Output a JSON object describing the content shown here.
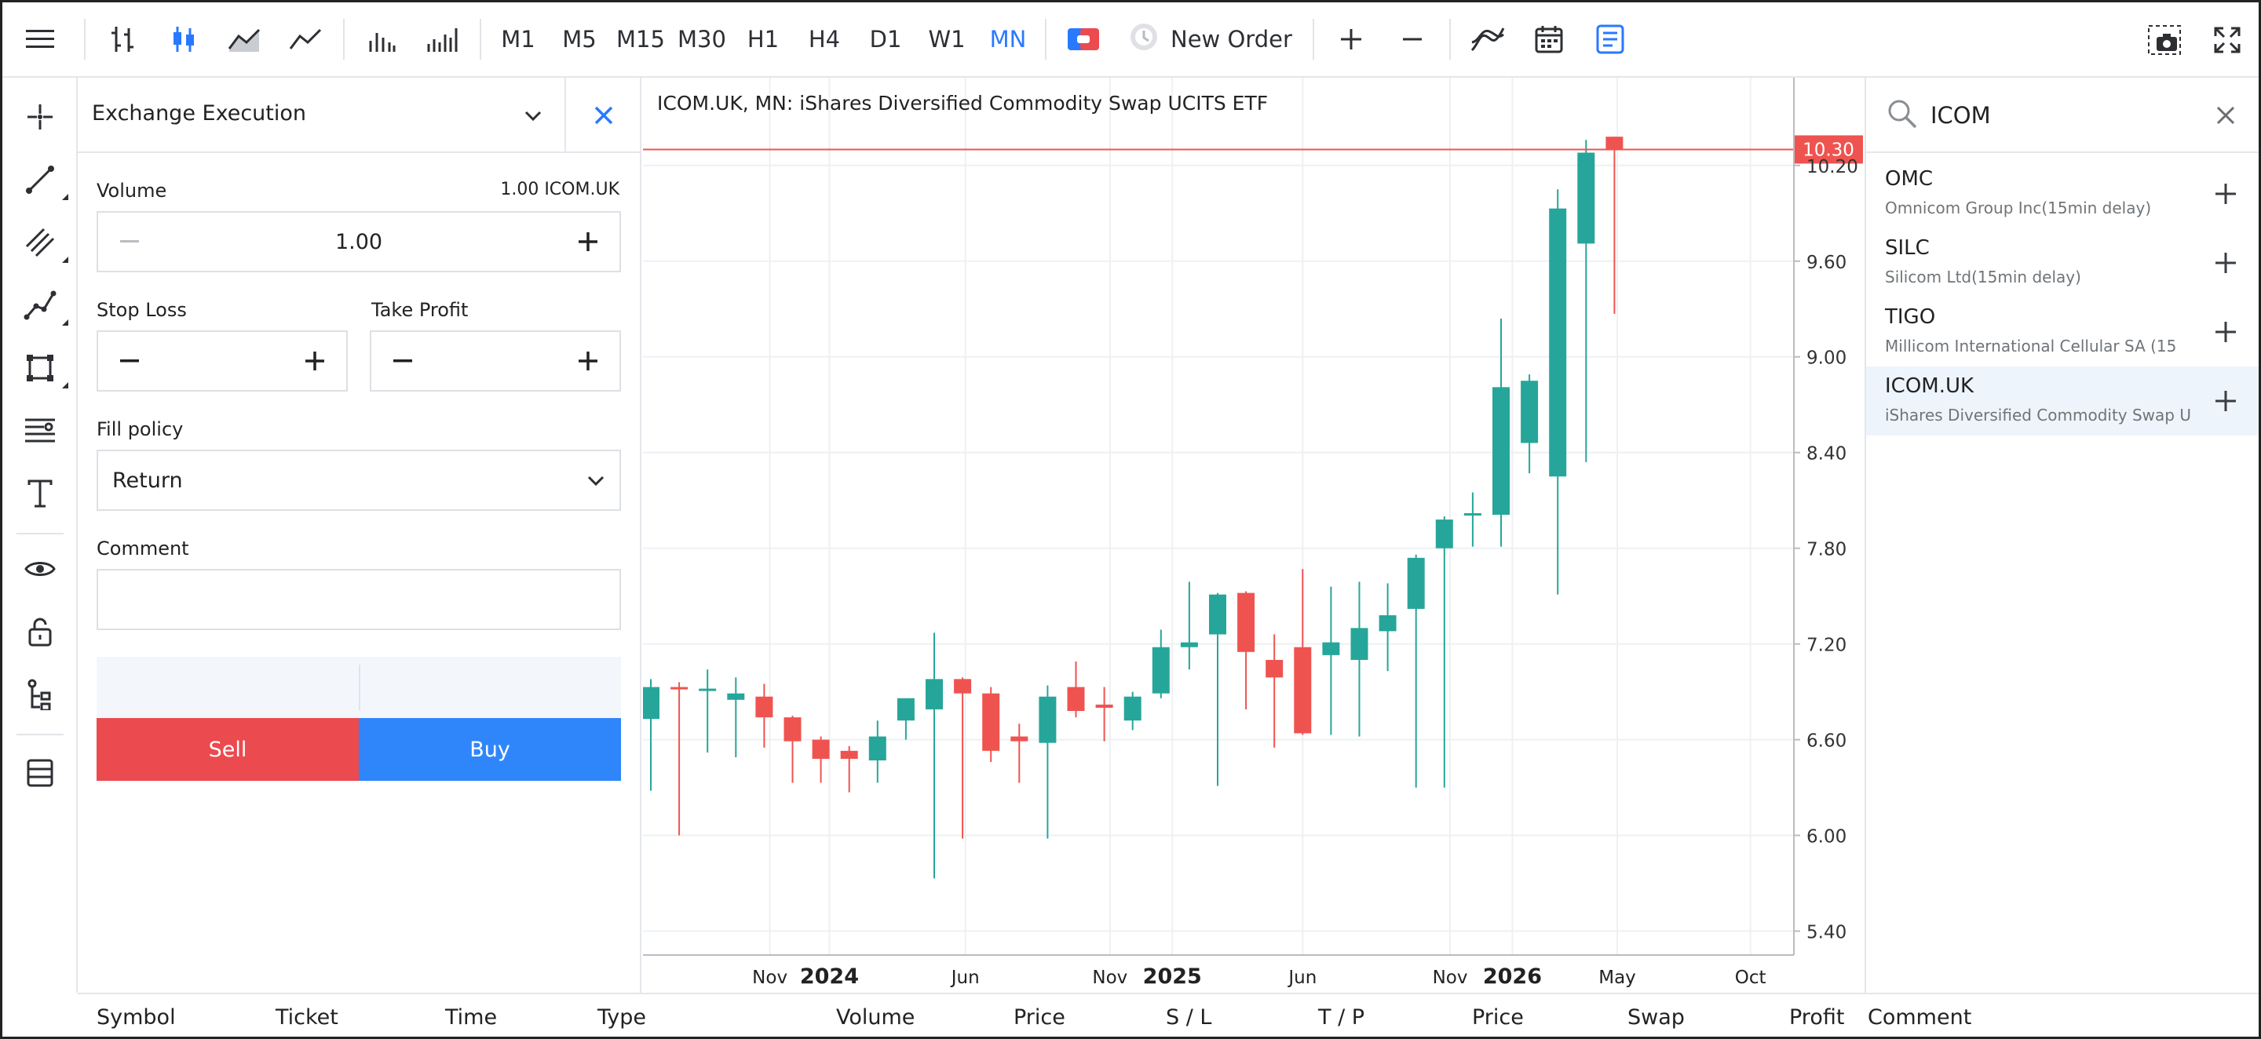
{
  "toolbar": {
    "timeframes": [
      "M1",
      "M5",
      "M15",
      "M30",
      "H1",
      "H4",
      "D1",
      "W1",
      "MN"
    ],
    "active_timeframe": "MN",
    "new_order_label": "New Order",
    "icons": [
      "menu-icon",
      "bar-chart-icon",
      "candlestick-icon",
      "line-area-icon",
      "line-chart-icon",
      "volume-ticks-icon",
      "volume-bars-icon",
      "one-click-trading-icon",
      "new-order-icon",
      "zoom-in-icon",
      "zoom-out-icon",
      "indicators-icon",
      "calendar-icon",
      "trade-panel-icon",
      "screenshot-icon",
      "fullscreen-icon"
    ]
  },
  "left_tools": [
    "crosshair-icon",
    "trend-line-icon",
    "channel-icon",
    "polyline-icon",
    "shapes-icon",
    "fibonacci-icon",
    "text-icon",
    "eye-icon",
    "lock-icon",
    "object-tree-icon",
    "layers-icon"
  ],
  "order_panel": {
    "execution": "Exchange Execution",
    "volume_label": "Volume",
    "volume_hint": "1.00 ICOM.UK",
    "volume_value": "1.00",
    "stop_loss_label": "Stop Loss",
    "take_profit_label": "Take Profit",
    "fill_policy_label": "Fill policy",
    "fill_policy_value": "Return",
    "comment_label": "Comment",
    "comment_value": "",
    "sell_label": "Sell",
    "buy_label": "Buy"
  },
  "chart": {
    "title": "ICOM.UK, MN: iShares Diversified Commodity Swap UCITS ETF",
    "colors": {
      "up": "#26a69a",
      "down": "#ef5350",
      "price_line": "#ef5350",
      "grid": "#eef0f2"
    }
  },
  "chart_data": {
    "type": "candlestick",
    "title": "ICOM.UK, MN: iShares Diversified Commodity Swap UCITS ETF",
    "timeframe": "MN",
    "current_price": 10.3,
    "current_price_label": "10.30",
    "y_ticks": [
      10.2,
      9.6,
      9.0,
      8.4,
      7.8,
      7.2,
      6.6,
      6.0,
      5.4
    ],
    "y_tick_labels": [
      "10.20",
      "9.60",
      "9.00",
      "8.40",
      "7.80",
      "7.20",
      "6.60",
      "6.00",
      "5.40"
    ],
    "ylim": [
      5.25,
      10.75
    ],
    "x_ticks": [
      {
        "label": "Nov",
        "bold": false,
        "index": 4.2
      },
      {
        "label": "2024",
        "bold": true,
        "index": 6.3
      },
      {
        "label": "Jun",
        "bold": false,
        "index": 11.1
      },
      {
        "label": "Nov",
        "bold": false,
        "index": 16.2
      },
      {
        "label": "2025",
        "bold": true,
        "index": 18.4
      },
      {
        "label": "Jun",
        "bold": false,
        "index": 23.0
      },
      {
        "label": "Nov",
        "bold": false,
        "index": 28.2
      },
      {
        "label": "2026",
        "bold": true,
        "index": 30.4
      },
      {
        "label": "May",
        "bold": false,
        "index": 34.1
      },
      {
        "label": "Oct",
        "bold": false,
        "index": 38.8
      }
    ],
    "candles": [
      {
        "o": 6.73,
        "h": 6.98,
        "l": 6.28,
        "c": 6.93
      },
      {
        "o": 6.93,
        "h": 6.96,
        "l": 6.0,
        "c": 6.92
      },
      {
        "o": 6.92,
        "h": 7.04,
        "l": 6.52,
        "c": 6.92
      },
      {
        "o": 6.85,
        "h": 6.99,
        "l": 6.49,
        "c": 6.89
      },
      {
        "o": 6.87,
        "h": 6.95,
        "l": 6.55,
        "c": 6.74
      },
      {
        "o": 6.74,
        "h": 6.75,
        "l": 6.33,
        "c": 6.59
      },
      {
        "o": 6.6,
        "h": 6.62,
        "l": 6.33,
        "c": 6.48
      },
      {
        "o": 6.53,
        "h": 6.56,
        "l": 6.27,
        "c": 6.48
      },
      {
        "o": 6.47,
        "h": 6.72,
        "l": 6.33,
        "c": 6.62
      },
      {
        "o": 6.72,
        "h": 6.84,
        "l": 6.6,
        "c": 6.86
      },
      {
        "o": 6.79,
        "h": 7.27,
        "l": 5.73,
        "c": 6.98
      },
      {
        "o": 6.98,
        "h": 6.99,
        "l": 5.98,
        "c": 6.89
      },
      {
        "o": 6.89,
        "h": 6.93,
        "l": 6.46,
        "c": 6.53
      },
      {
        "o": 6.62,
        "h": 6.7,
        "l": 6.33,
        "c": 6.59
      },
      {
        "o": 6.58,
        "h": 6.94,
        "l": 5.98,
        "c": 6.87
      },
      {
        "o": 6.93,
        "h": 7.09,
        "l": 6.74,
        "c": 6.78
      },
      {
        "o": 6.82,
        "h": 6.93,
        "l": 6.59,
        "c": 6.8
      },
      {
        "o": 6.72,
        "h": 6.9,
        "l": 6.66,
        "c": 6.87
      },
      {
        "o": 6.89,
        "h": 7.29,
        "l": 6.86,
        "c": 7.18
      },
      {
        "o": 7.18,
        "h": 7.59,
        "l": 7.04,
        "c": 7.21
      },
      {
        "o": 7.26,
        "h": 7.52,
        "l": 6.31,
        "c": 7.51
      },
      {
        "o": 7.52,
        "h": 7.53,
        "l": 6.79,
        "c": 7.15
      },
      {
        "o": 7.1,
        "h": 7.26,
        "l": 6.55,
        "c": 6.99
      },
      {
        "o": 7.18,
        "h": 7.67,
        "l": 6.63,
        "c": 6.64
      },
      {
        "o": 7.13,
        "h": 7.56,
        "l": 6.63,
        "c": 7.21
      },
      {
        "o": 7.1,
        "h": 7.59,
        "l": 6.62,
        "c": 7.3
      },
      {
        "o": 7.28,
        "h": 7.58,
        "l": 7.03,
        "c": 7.38
      },
      {
        "o": 7.42,
        "h": 7.76,
        "l": 6.3,
        "c": 7.74
      },
      {
        "o": 7.8,
        "h": 8.0,
        "l": 6.3,
        "c": 7.98
      },
      {
        "o": 8.01,
        "h": 8.15,
        "l": 7.81,
        "c": 8.02
      },
      {
        "o": 8.01,
        "h": 9.24,
        "l": 7.81,
        "c": 8.81
      },
      {
        "o": 8.46,
        "h": 8.89,
        "l": 8.27,
        "c": 8.85
      },
      {
        "o": 8.25,
        "h": 10.05,
        "l": 7.51,
        "c": 9.93
      },
      {
        "o": 9.71,
        "h": 10.36,
        "l": 8.34,
        "c": 10.28
      },
      {
        "o": 10.38,
        "h": 10.38,
        "l": 9.27,
        "c": 10.3
      }
    ]
  },
  "search": {
    "query": "ICOM",
    "results": [
      {
        "symbol": "OMC",
        "description": "Omnicom Group Inc(15min delay)",
        "selected": false
      },
      {
        "symbol": "SILC",
        "description": "Silicom Ltd(15min delay)",
        "selected": false
      },
      {
        "symbol": "TIGO",
        "description": "Millicom International Cellular SA (15",
        "selected": false
      },
      {
        "symbol": "ICOM.UK",
        "description": "iShares Diversified Commodity Swap U",
        "selected": true
      }
    ]
  },
  "bottom_table": {
    "columns": [
      "Symbol",
      "Ticket",
      "Time",
      "Type",
      "Volume",
      "Price",
      "S / L",
      "T / P",
      "Price",
      "Swap",
      "Profit",
      "Comment"
    ]
  }
}
